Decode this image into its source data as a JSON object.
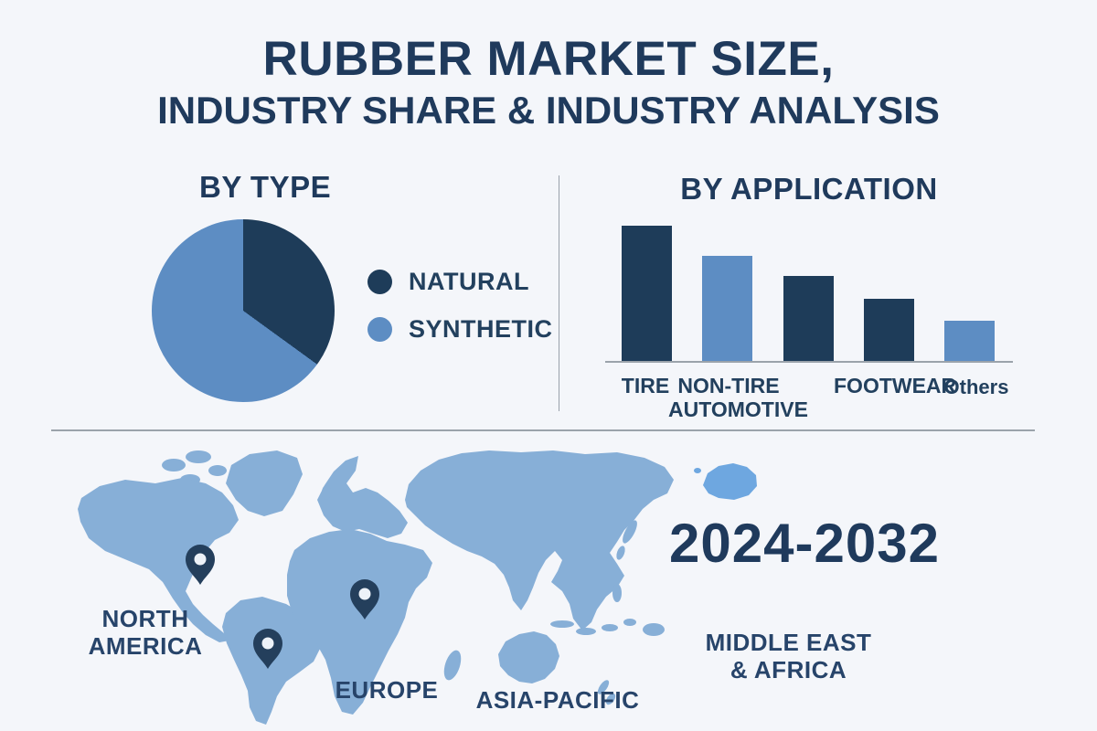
{
  "colors": {
    "background": "#f4f6fa",
    "navy_text": "#1f3a5c",
    "dark_series": "#1e3c59",
    "light_series": "#5d8dc3",
    "map_blue": "#87afd7",
    "island_blue": "#6ea7e0",
    "pin_navy": "#243f5c",
    "pin_hole": "#edf2f8",
    "divider_gray": "#9ba3ab"
  },
  "icons": {
    "location_pin": "teardrop-map-marker"
  },
  "title": {
    "line1": "RUBBER MARKET SIZE,",
    "line2": "INDUSTRY SHARE & INDUSTRY ANALYSIS"
  },
  "by_type": {
    "heading": "BY TYPE"
  },
  "by_application": {
    "heading": "BY APPLICATION"
  },
  "map": {
    "labels": {
      "north_america": "NORTH AMERICA",
      "europe": "EUROPE",
      "asia_pacific": "ASIA-PACIFIC",
      "middle_east_africa": "MIDDLE EAST & AFRICA"
    },
    "period": "2024-2032"
  },
  "chart_data": [
    {
      "type": "pie",
      "title": "BY TYPE",
      "labels": [
        "NATURAL",
        "SYNTHETIC"
      ],
      "values": [
        35,
        65
      ],
      "colors": [
        "#1e3c59",
        "#5d8dc3"
      ],
      "start_angle_deg": 0,
      "legend_position": "right"
    },
    {
      "type": "bar",
      "title": "BY APPLICATION",
      "categories": [
        "TIRE",
        "NON-TIRE AUTOMOTIVE",
        "",
        "FOOTWEAR",
        "Others"
      ],
      "values": [
        100,
        78,
        63,
        46,
        30
      ],
      "colors": [
        "#1e3c59",
        "#5d8dc3",
        "#1e3c59",
        "#1e3c59",
        "#5d8dc3"
      ],
      "xlabel": "",
      "ylabel": "",
      "ylim": [
        0,
        100
      ],
      "grid": false,
      "note": "third bar is unlabeled in source graphic; values are relative heights"
    }
  ]
}
